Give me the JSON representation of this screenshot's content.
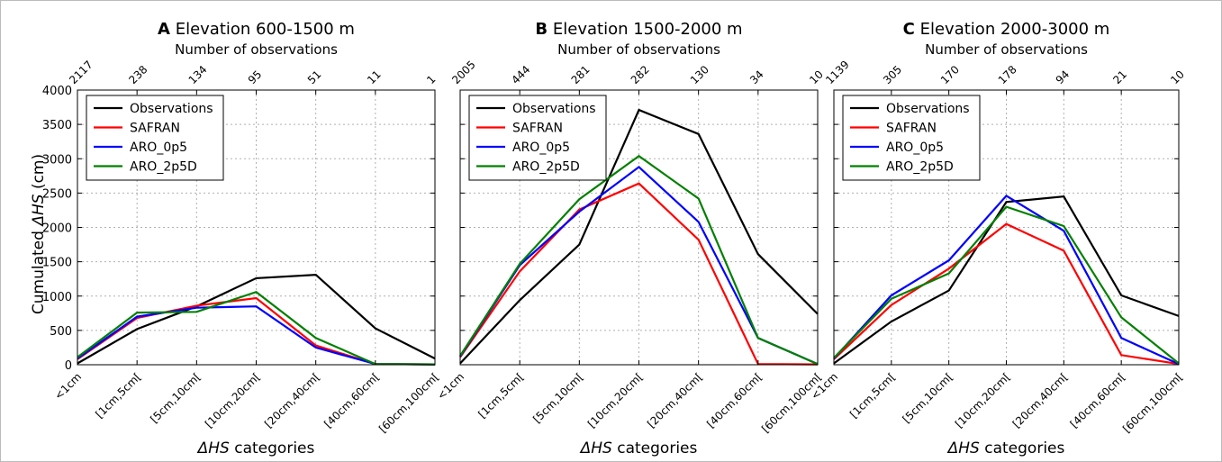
{
  "figure": {
    "ylabel_prefix": "Cumulated",
    "ylabel_italic": "ΔHS",
    "ylabel_suffix": " (cm)",
    "xlabel_italic": "ΔHS",
    "xlabel_suffix": " categories",
    "top_axis_label": "Number of observations"
  },
  "colors": {
    "Observations": "#000000",
    "SAFRAN": "#ff0000",
    "ARO_0p5": "#0000ff",
    "ARO_2p5D": "#008000",
    "frame": "#888888"
  },
  "chart_data": [
    {
      "type": "line",
      "panel_letter": "A",
      "title": "Elevation 600-1500 m",
      "categories": [
        "<1cm",
        "[1cm,5cm[",
        "[5cm,10cm[",
        "[10cm,20cm[",
        "[20cm,40cm[",
        "[40cm,60cm[",
        "[60cm,100cm["
      ],
      "top_ticks": [
        "2117",
        "238",
        "134",
        "95",
        "51",
        "11",
        "1"
      ],
      "ylim": [
        0,
        4000
      ],
      "yticks": [
        0,
        500,
        1000,
        1500,
        2000,
        2500,
        3000,
        3500,
        4000
      ],
      "grid": true,
      "legend_position": "top-left",
      "series": [
        {
          "name": "Observations",
          "values": [
            20,
            520,
            850,
            1260,
            1310,
            530,
            90
          ]
        },
        {
          "name": "SAFRAN",
          "values": [
            80,
            680,
            860,
            970,
            280,
            10,
            5
          ]
        },
        {
          "name": "ARO_0p5",
          "values": [
            90,
            700,
            830,
            850,
            250,
            10,
            5
          ]
        },
        {
          "name": "ARO_2p5D",
          "values": [
            110,
            760,
            770,
            1060,
            390,
            10,
            5
          ]
        }
      ]
    },
    {
      "type": "line",
      "panel_letter": "B",
      "title": "Elevation 1500-2000 m",
      "categories": [
        "<1cm",
        "[1cm,5cm[",
        "[5cm,10cm[",
        "[10cm,20cm[",
        "[20cm,40cm[",
        "[40cm,60cm[",
        "[60cm,100cm["
      ],
      "top_ticks": [
        "2005",
        "444",
        "281",
        "282",
        "130",
        "34",
        "10"
      ],
      "ylim": [
        0,
        4000
      ],
      "grid": true,
      "legend_position": "top-left",
      "series": [
        {
          "name": "Observations",
          "values": [
            20,
            940,
            1750,
            3710,
            3360,
            1610,
            740
          ]
        },
        {
          "name": "SAFRAN",
          "values": [
            110,
            1360,
            2260,
            2640,
            1820,
            10,
            5
          ]
        },
        {
          "name": "ARO_0p5",
          "values": [
            120,
            1450,
            2230,
            2880,
            2080,
            390,
            10
          ]
        },
        {
          "name": "ARO_2p5D",
          "values": [
            130,
            1470,
            2410,
            3040,
            2420,
            390,
            10
          ]
        }
      ]
    },
    {
      "type": "line",
      "panel_letter": "C",
      "title": "Elevation 2000-3000 m",
      "categories": [
        "<1cm",
        "[1cm,5cm[",
        "[5cm,10cm[",
        "[10cm,20cm[",
        "[20cm,40cm[",
        "[40cm,60cm[",
        "[60cm,100cm["
      ],
      "top_ticks": [
        "1139",
        "305",
        "170",
        "178",
        "94",
        "21",
        "10"
      ],
      "ylim": [
        0,
        4000
      ],
      "grid": true,
      "legend_position": "top-left",
      "series": [
        {
          "name": "Observations",
          "values": [
            20,
            630,
            1080,
            2370,
            2450,
            1010,
            710
          ]
        },
        {
          "name": "SAFRAN",
          "values": [
            80,
            870,
            1400,
            2050,
            1660,
            140,
            10
          ]
        },
        {
          "name": "ARO_0p5",
          "values": [
            90,
            1010,
            1520,
            2460,
            1950,
            390,
            10
          ]
        },
        {
          "name": "ARO_2p5D",
          "values": [
            100,
            960,
            1330,
            2300,
            2020,
            690,
            20
          ]
        }
      ]
    }
  ]
}
